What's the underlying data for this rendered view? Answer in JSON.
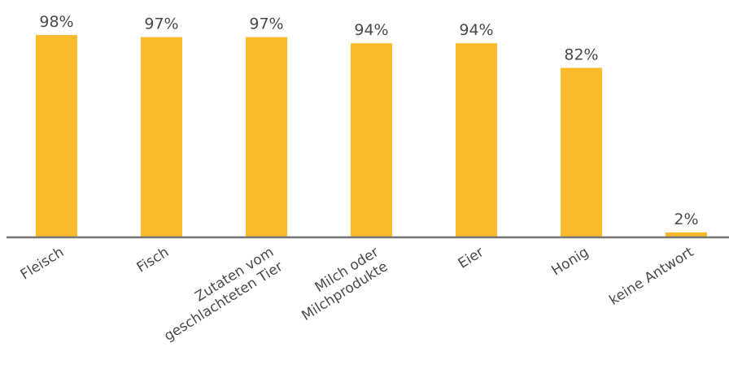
{
  "chart_data": {
    "type": "bar",
    "categories": [
      [
        "Fleisch"
      ],
      [
        "Fisch"
      ],
      [
        "Zutaten vom",
        "geschlachteten Tier"
      ],
      [
        "Milch oder",
        "Milchprodukte"
      ],
      [
        "Eier"
      ],
      [
        "Honig"
      ],
      [
        "keine Antwort"
      ]
    ],
    "values": [
      98,
      97,
      97,
      94,
      94,
      82,
      2
    ],
    "value_labels": [
      "98%",
      "97%",
      "97%",
      "94%",
      "94%",
      "82%",
      "2%"
    ],
    "ylim": [
      0,
      100
    ],
    "grid": false,
    "legend": "none",
    "colors": {
      "bar": "#FBBA2A",
      "axis": "#757575",
      "text": "#4A4A4A"
    }
  }
}
